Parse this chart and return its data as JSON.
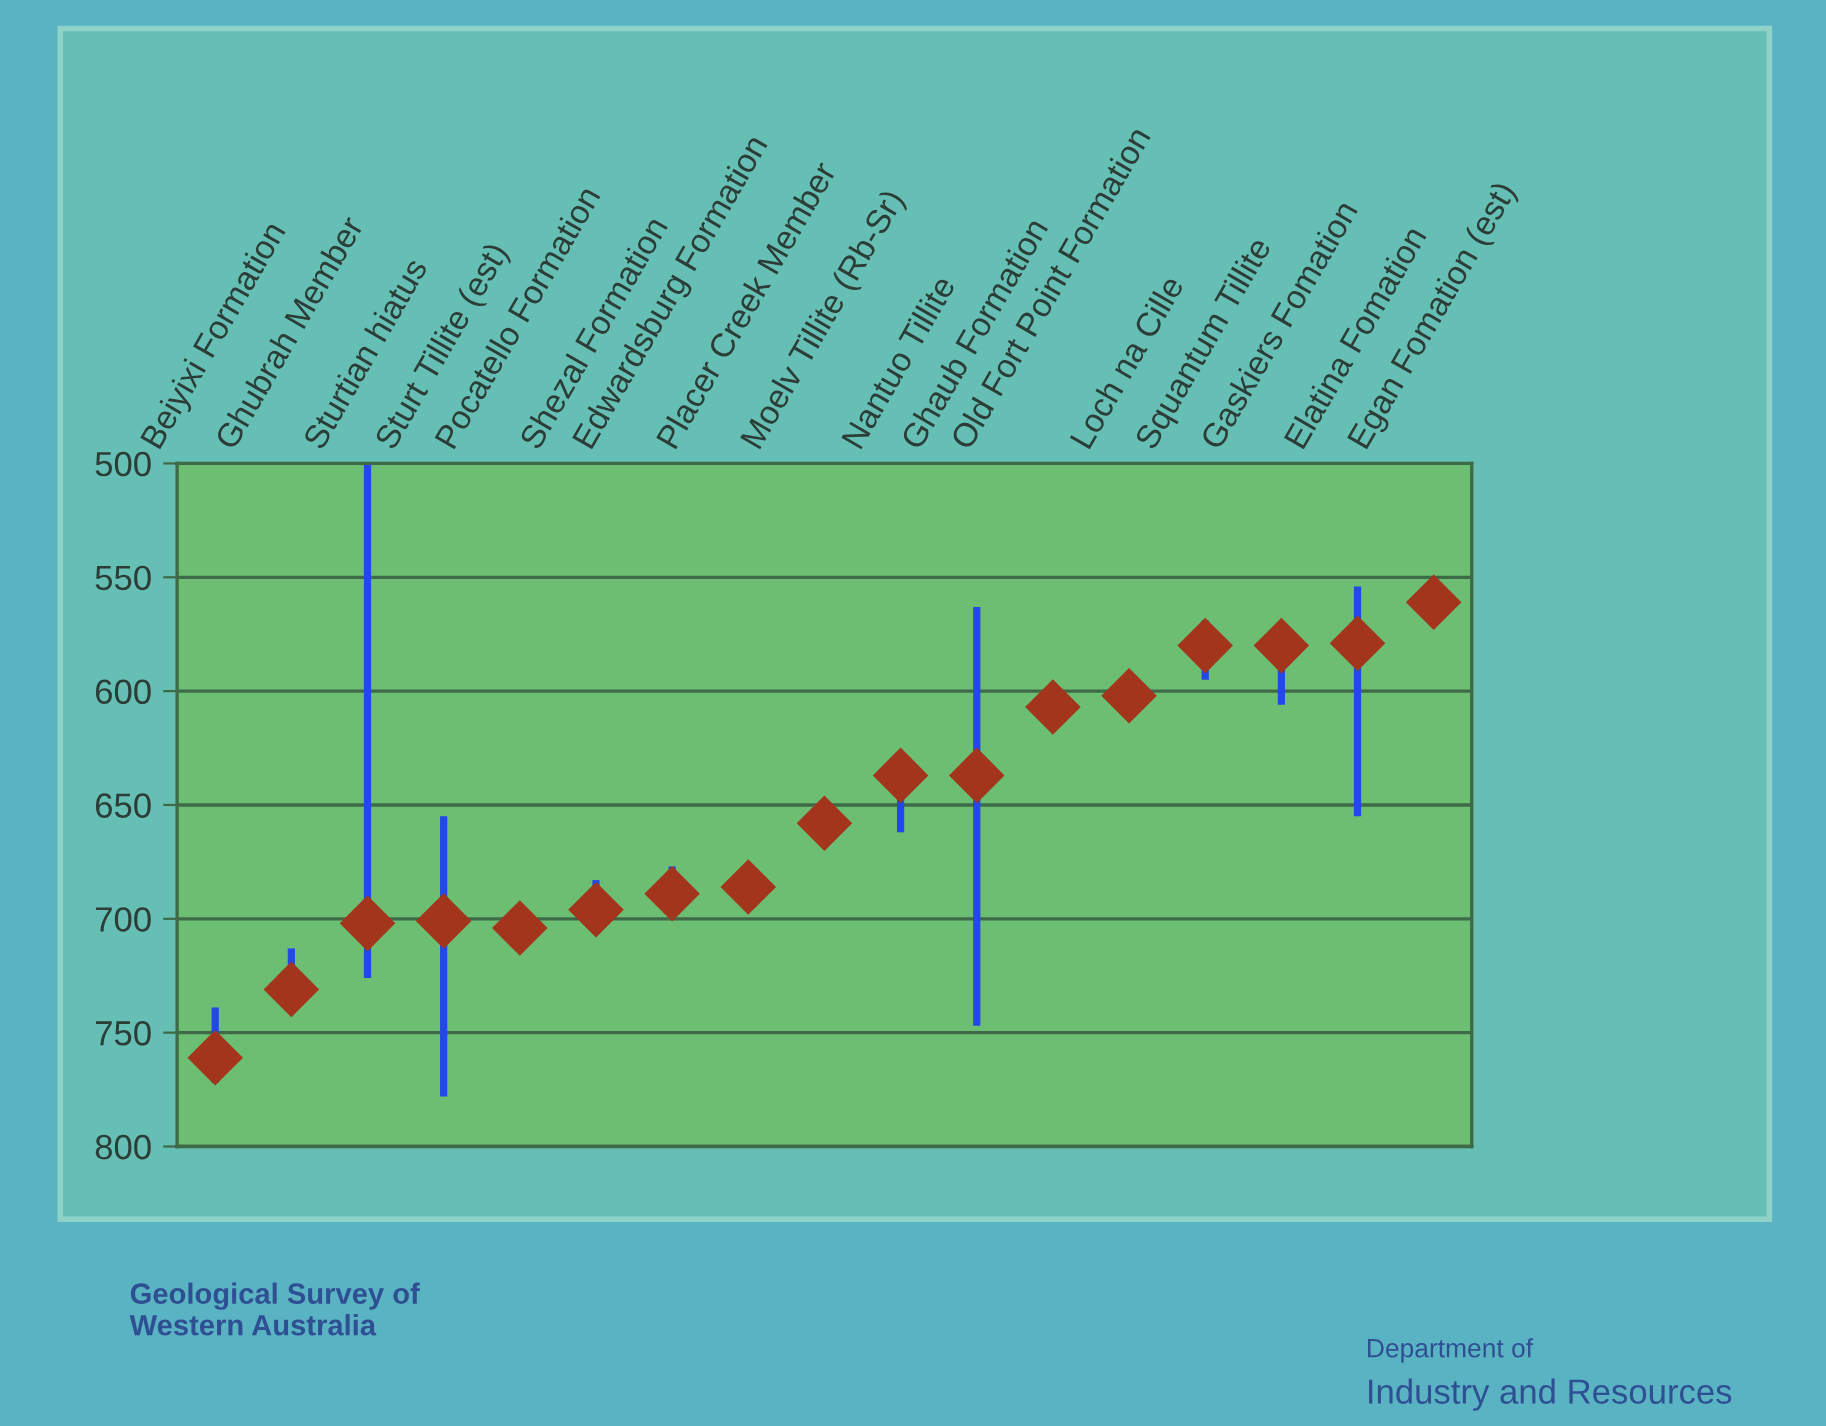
{
  "chart_data": {
    "type": "scatter",
    "categories": [
      "Beiyixi Formation",
      "Ghubrah Member",
      "Sturtian hiatus",
      "Sturt Tillite (est)",
      "Pocatello Formation",
      "Shezal Formation",
      "Edwardsburg Formation",
      "Placer Creek Member",
      "Moelv Tillite (Rb-Sr)",
      "Nantuo Tillite",
      "Ghaub Formation",
      "Old Fort Point Formation",
      "Loch na Cille",
      "Squantum Tillite",
      "Gaskiers Fomation",
      "Elatina Fomation",
      "Egan Fomation (est)"
    ],
    "values": [
      761,
      731,
      702,
      701,
      704,
      696,
      689,
      686,
      658,
      637,
      637,
      607,
      602,
      580,
      580,
      579,
      561
    ],
    "errors": [
      [
        739,
        772
      ],
      [
        713,
        731
      ],
      [
        500,
        726
      ],
      [
        655,
        778
      ],
      null,
      [
        683,
        696
      ],
      [
        677,
        689
      ],
      null,
      null,
      [
        637,
        662
      ],
      [
        563,
        747
      ],
      null,
      null,
      [
        569,
        595
      ],
      [
        580,
        606
      ],
      [
        554,
        655
      ],
      null
    ],
    "color": "#a3351c",
    "marker": "diamond",
    "ylim": [
      800,
      500
    ],
    "yticks": [
      500,
      550,
      600,
      650,
      700,
      750,
      800
    ],
    "grid": "y",
    "annotations": [
      "Geological Survey of\nWestern Australia",
      "Department of",
      "Industry and Resources"
    ]
  }
}
